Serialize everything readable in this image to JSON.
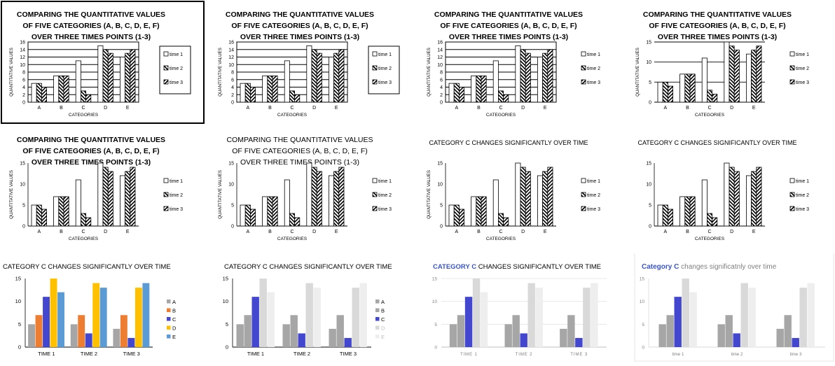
{
  "patterns": [
    "white",
    "backslash",
    "slash"
  ],
  "colors": {
    "grey": "#a6a6a6",
    "orange": "#ed7d31",
    "blue": "#4346cf",
    "yellow": "#ffc000",
    "lightblue": "#5b9bd5",
    "pale": "#d9d9d9",
    "paler": "#eeeeee",
    "title_blue": "#3a55c8",
    "gray_text": "#808080"
  },
  "panels": [
    {
      "type": "bar",
      "style": "pattern",
      "group_by": "category",
      "title_lines": [
        "COMPARING THE QUANTITATIVE VALUES",
        "OF FIVE CATEGORIES (A, B, C, D, E, F)",
        "OVER THREE TIMES POINTS (1-3)"
      ],
      "title_style": "bold-center",
      "xlabel": "CATEGORIES",
      "ylabel": "QUANTITATIVE VALUES",
      "categories": [
        "A",
        "B",
        "C",
        "D",
        "E"
      ],
      "series": [
        {
          "name": "time 1",
          "values": [
            5,
            7,
            11,
            15,
            12
          ]
        },
        {
          "name": "time 2",
          "values": [
            5,
            7,
            3,
            14,
            13
          ]
        },
        {
          "name": "time 3",
          "values": [
            4,
            7,
            2,
            13,
            14
          ]
        }
      ],
      "ylim": [
        0,
        16
      ],
      "yticks": [
        0,
        2,
        4,
        6,
        8,
        10,
        12,
        14,
        16
      ],
      "grid": true,
      "legend_box": true,
      "outer_box": true
    },
    {
      "type": "bar",
      "style": "pattern",
      "group_by": "category",
      "title_lines": [
        "COMPARING THE QUANTITATIVE VALUES",
        "OF FIVE CATEGORIES (A, B, C, D, E, F)",
        "OVER THREE TIMES POINTS (1-3)"
      ],
      "title_style": "bold-center",
      "xlabel": "CATEGORIES",
      "ylabel": "QUANTITATIVE VALUES",
      "categories": [
        "A",
        "B",
        "C",
        "D",
        "E"
      ],
      "series": [
        {
          "name": "time 1",
          "values": [
            5,
            7,
            11,
            15,
            12
          ]
        },
        {
          "name": "time 2",
          "values": [
            5,
            7,
            3,
            14,
            13
          ]
        },
        {
          "name": "time 3",
          "values": [
            4,
            7,
            2,
            13,
            14
          ]
        }
      ],
      "ylim": [
        0,
        16
      ],
      "yticks": [
        0,
        2,
        4,
        6,
        8,
        10,
        12,
        14,
        16
      ],
      "grid": true,
      "legend_box": true,
      "outer_box": false
    },
    {
      "type": "bar",
      "style": "pattern",
      "group_by": "category",
      "title_lines": [
        "COMPARING THE QUANTITATIVE VALUES",
        "OF FIVE CATEGORIES (A, B, C, D, E, F)",
        "OVER THREE TIMES POINTS (1-3)"
      ],
      "title_style": "bold-center",
      "xlabel": "CATEGORIES",
      "ylabel": "QUANTITATIVE VALUES",
      "categories": [
        "A",
        "B",
        "C",
        "D",
        "E"
      ],
      "series": [
        {
          "name": "time 1",
          "values": [
            5,
            7,
            11,
            15,
            12
          ]
        },
        {
          "name": "time 2",
          "values": [
            5,
            7,
            3,
            14,
            13
          ]
        },
        {
          "name": "time 3",
          "values": [
            4,
            7,
            2,
            13,
            14
          ]
        }
      ],
      "ylim": [
        0,
        16
      ],
      "yticks": [
        0,
        2,
        4,
        6,
        8,
        10,
        12,
        14,
        16
      ],
      "grid": true,
      "legend_box": false,
      "outer_box": false
    },
    {
      "type": "bar",
      "style": "pattern",
      "group_by": "category",
      "title_lines": [
        "COMPARING THE QUANTITATIVE VALUES",
        "OF FIVE CATEGORIES (A, B, C, D, E, F)",
        "OVER THREE TIMES POINTS (1-3)"
      ],
      "title_style": "bold-center",
      "xlabel": "CATEGORIES",
      "ylabel": "QUANTITATIVE VALUES",
      "categories": [
        "A",
        "B",
        "C",
        "D",
        "E"
      ],
      "series": [
        {
          "name": "time 1",
          "values": [
            5,
            7,
            11,
            15,
            12
          ]
        },
        {
          "name": "time 2",
          "values": [
            5,
            7,
            3,
            14,
            13
          ]
        },
        {
          "name": "time 3",
          "values": [
            4,
            7,
            2,
            13,
            14
          ]
        }
      ],
      "ylim": [
        0,
        15
      ],
      "yticks": [
        0,
        5,
        10,
        15
      ],
      "grid": true,
      "legend_box": false,
      "outer_box": false
    },
    {
      "type": "bar",
      "style": "pattern",
      "group_by": "category",
      "title_lines": [
        "COMPARING THE QUANTITATIVE VALUES",
        "OF FIVE CATEGORIES (A, B, C, D, E, F)",
        "OVER THREE TIMES POINTS (1-3)"
      ],
      "title_style": "bold-center",
      "xlabel": "CATEGORIES",
      "ylabel": "QUANTITATIVE VALUES",
      "categories": [
        "A",
        "B",
        "C",
        "D",
        "E"
      ],
      "series": [
        {
          "name": "time 1",
          "values": [
            5,
            7,
            11,
            15,
            12
          ]
        },
        {
          "name": "time 2",
          "values": [
            5,
            7,
            3,
            14,
            13
          ]
        },
        {
          "name": "time 3",
          "values": [
            4,
            7,
            2,
            13,
            14
          ]
        }
      ],
      "ylim": [
        0,
        15
      ],
      "yticks": [
        0,
        5,
        10,
        15
      ],
      "grid": false,
      "legend_box": false,
      "outer_box": false
    },
    {
      "type": "bar",
      "style": "pattern",
      "group_by": "category",
      "title_lines": [
        "COMPARING THE QUANTITATIVE VALUES",
        "OF FIVE CATEGORIES (A, B, C, D, E, F)",
        "OVER THREE TIMES POINTS (1-3)"
      ],
      "title_style": "regular-center",
      "xlabel": "CATEGORIES",
      "ylabel": "QUANTITATIVE VALUES",
      "categories": [
        "A",
        "B",
        "C",
        "D",
        "E"
      ],
      "series": [
        {
          "name": "time 1",
          "values": [
            5,
            7,
            11,
            15,
            12
          ]
        },
        {
          "name": "time 2",
          "values": [
            5,
            7,
            3,
            14,
            13
          ]
        },
        {
          "name": "time 3",
          "values": [
            4,
            7,
            2,
            13,
            14
          ]
        }
      ],
      "ylim": [
        0,
        15
      ],
      "yticks": [
        0,
        5,
        10,
        15
      ],
      "grid": false,
      "legend_box": false,
      "outer_box": false
    },
    {
      "type": "bar",
      "style": "pattern",
      "group_by": "category",
      "title_lines": [
        "CATEGORY C CHANGES SIGNIFICANTLY OVER TIME"
      ],
      "title_style": "regular-center",
      "xlabel": "CATEGORIES",
      "ylabel": "QUANTITATIVE VALUES",
      "categories": [
        "A",
        "B",
        "C",
        "D",
        "E"
      ],
      "series": [
        {
          "name": "time 1",
          "values": [
            5,
            7,
            11,
            15,
            12
          ]
        },
        {
          "name": "time 2",
          "values": [
            5,
            7,
            3,
            14,
            13
          ]
        },
        {
          "name": "time 3",
          "values": [
            4,
            7,
            2,
            13,
            14
          ]
        }
      ],
      "ylim": [
        0,
        15
      ],
      "yticks": [
        0,
        5,
        10,
        15
      ],
      "grid": false,
      "legend_box": false,
      "outer_box": false
    },
    {
      "type": "bar",
      "style": "pattern",
      "group_by": "category",
      "title_lines": [
        "CATEGORY C CHANGES SIGNIFICANTLY OVER TIME"
      ],
      "title_style": "regular-center",
      "xlabel": "CATEGORIES",
      "ylabel": "",
      "categories": [
        "A",
        "B",
        "C",
        "D",
        "E"
      ],
      "series": [
        {
          "name": "time 1",
          "values": [
            5,
            7,
            11,
            15,
            12
          ]
        },
        {
          "name": "time 2",
          "values": [
            5,
            7,
            3,
            14,
            13
          ]
        },
        {
          "name": "time 3",
          "values": [
            4,
            7,
            2,
            13,
            14
          ]
        }
      ],
      "ylim": [
        0,
        15
      ],
      "yticks": [
        0,
        5,
        10,
        15
      ],
      "grid": false,
      "legend_box": false,
      "outer_box": false
    },
    {
      "type": "bar",
      "style": "color",
      "group_by": "time",
      "title_lines": [
        "CATEGORY C CHANGES SIGNIFICANTLY OVER TIME"
      ],
      "title_style": "regular-left",
      "xlabel": "",
      "ylabel": "",
      "categories": [
        "TIME 1",
        "TIME 2",
        "TIME 3"
      ],
      "series": [
        {
          "name": "A",
          "values": [
            5,
            5,
            4
          ],
          "color": "grey"
        },
        {
          "name": "B",
          "values": [
            7,
            7,
            7
          ],
          "color": "orange"
        },
        {
          "name": "C",
          "values": [
            11,
            3,
            2
          ],
          "color": "blue"
        },
        {
          "name": "D",
          "values": [
            15,
            14,
            13
          ],
          "color": "yellow"
        },
        {
          "name": "E",
          "values": [
            12,
            13,
            14
          ],
          "color": "lightblue"
        }
      ],
      "ylim": [
        0,
        15
      ],
      "yticks": [
        0,
        5,
        10,
        15
      ],
      "grid": false,
      "legend": true,
      "axis_color": "#000000"
    },
    {
      "type": "bar",
      "style": "color",
      "group_by": "time",
      "title_lines": [
        "CATEGORY C CHANGES SIGNIFICANTLY OVER TIME"
      ],
      "title_style": "regular-left",
      "xlabel": "",
      "ylabel": "",
      "categories": [
        "TIME 1",
        "TIME 2",
        "TIME 3"
      ],
      "series": [
        {
          "name": "A",
          "values": [
            5,
            5,
            4
          ],
          "color": "grey"
        },
        {
          "name": "B",
          "values": [
            7,
            7,
            7
          ],
          "color": "grey"
        },
        {
          "name": "C",
          "values": [
            11,
            3,
            2
          ],
          "color": "blue"
        },
        {
          "name": "D",
          "values": [
            15,
            14,
            13
          ],
          "color": "pale"
        },
        {
          "name": "E",
          "values": [
            12,
            13,
            14
          ],
          "color": "paler"
        }
      ],
      "ylim": [
        0,
        15
      ],
      "yticks": [
        0,
        5,
        10,
        15
      ],
      "grid": false,
      "legend": true,
      "axis_color": "#000000"
    },
    {
      "type": "bar",
      "style": "color",
      "group_by": "time",
      "title_lines": [
        "CATEGORY C CHANGES SIGNIFICANTLY OVER TIME"
      ],
      "title_style": "blue-c-left",
      "title_parts": [
        "CATEGORY C",
        " CHANGES SIGNIFICANTLY OVER TIME"
      ],
      "xlabel": "",
      "ylabel": "",
      "categories": [
        "TIME 1",
        "TIME 2",
        "TIME 3"
      ],
      "series": [
        {
          "name": "A",
          "values": [
            5,
            5,
            4
          ],
          "color": "grey"
        },
        {
          "name": "B",
          "values": [
            7,
            7,
            7
          ],
          "color": "grey"
        },
        {
          "name": "C",
          "values": [
            11,
            3,
            2
          ],
          "color": "blue"
        },
        {
          "name": "D",
          "values": [
            15,
            14,
            13
          ],
          "color": "pale"
        },
        {
          "name": "E",
          "values": [
            12,
            13,
            14
          ],
          "color": "paler"
        }
      ],
      "ylim": [
        0,
        15
      ],
      "yticks": [
        0,
        5,
        10,
        15
      ],
      "grid": true,
      "legend": false,
      "axis_color": "#bfbfbf"
    },
    {
      "type": "bar",
      "style": "color",
      "group_by": "time",
      "title_lines": [
        "Category C changes significatnly over time"
      ],
      "title_style": "blue-c-left-mixed",
      "title_parts": [
        "Category C",
        " changes significatnly over time"
      ],
      "xlabel": "",
      "ylabel": "",
      "categories": [
        "time 1",
        "time 2",
        "time 3"
      ],
      "series": [
        {
          "name": "A",
          "values": [
            5,
            5,
            4
          ],
          "color": "grey"
        },
        {
          "name": "B",
          "values": [
            7,
            7,
            7
          ],
          "color": "grey"
        },
        {
          "name": "C",
          "values": [
            11,
            3,
            2
          ],
          "color": "blue"
        },
        {
          "name": "D",
          "values": [
            15,
            14,
            13
          ],
          "color": "pale"
        },
        {
          "name": "E",
          "values": [
            12,
            13,
            14
          ],
          "color": "paler"
        }
      ],
      "ylim": [
        0,
        15
      ],
      "yticks": [
        0,
        5,
        10,
        15
      ],
      "grid": false,
      "legend": false,
      "axis_color": "#d9d9d9",
      "frame": true
    }
  ]
}
